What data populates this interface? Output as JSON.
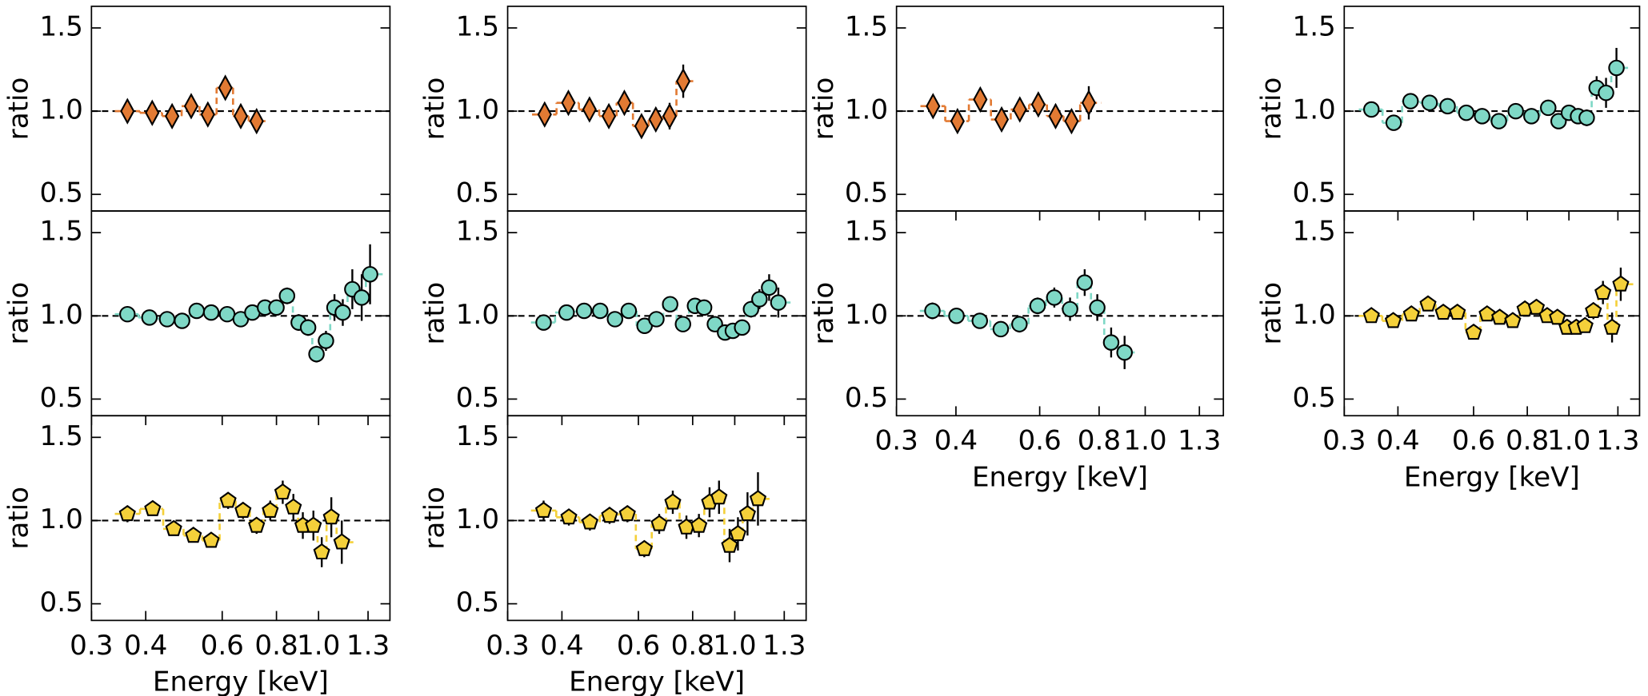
{
  "chart_data": [
    {
      "type": "scatter",
      "marker": "diamond",
      "color": "#e27a33",
      "ylabel": "ratio",
      "xscale": "log",
      "xlim": [
        0.3,
        1.46
      ],
      "ylim": [
        0.4,
        1.63
      ],
      "yticks": [
        0.5,
        {
          "value": 1,
          "label": "1.0"
        },
        1.5
      ],
      "hline": 1,
      "x": [
        0.363,
        0.414,
        0.46,
        0.509,
        0.556,
        0.61,
        0.662,
        0.72
      ],
      "values": [
        1.0,
        0.99,
        0.97,
        1.03,
        0.98,
        1.14,
        0.97,
        0.94
      ],
      "errors": [
        0.07,
        0.06,
        0.05,
        0.05,
        0.06,
        0.07,
        0.07,
        0.07
      ]
    },
    {
      "type": "scatter",
      "marker": "diamond",
      "color": "#e27a33",
      "ylabel": "ratio",
      "xscale": "log",
      "xlim": [
        0.3,
        1.46
      ],
      "ylim": [
        0.4,
        1.63
      ],
      "yticks": [
        0.5,
        {
          "value": 1,
          "label": "1.0"
        },
        1.5
      ],
      "hline": 1,
      "x": [
        0.365,
        0.414,
        0.463,
        0.513,
        0.557,
        0.61,
        0.658,
        0.708,
        0.761
      ],
      "values": [
        0.98,
        1.05,
        1.01,
        0.97,
        1.05,
        0.91,
        0.95,
        0.97,
        1.18
      ],
      "errors": [
        0.05,
        0.05,
        0.04,
        0.04,
        0.05,
        0.06,
        0.07,
        0.08,
        0.1
      ]
    },
    {
      "type": "scatter",
      "marker": "diamond",
      "color": "#e27a33",
      "ylabel": "ratio",
      "xscale": "log",
      "xlim": [
        0.3,
        1.46
      ],
      "ylim": [
        0.4,
        1.63
      ],
      "yticks": [
        0.5,
        {
          "value": 1,
          "label": "1.0"
        },
        1.5
      ],
      "hline": 1,
      "x": [
        0.358,
        0.403,
        0.45,
        0.499,
        0.545,
        0.596,
        0.648,
        0.7,
        0.761
      ],
      "values": [
        1.03,
        0.94,
        1.07,
        0.95,
        1.01,
        1.04,
        0.97,
        0.94,
        1.05
      ],
      "errors": [
        0.05,
        0.04,
        0.04,
        0.04,
        0.05,
        0.06,
        0.07,
        0.07,
        0.1
      ]
    },
    {
      "type": "scatter",
      "marker": "circle",
      "color": "#7fd8c6",
      "ylabel": "ratio",
      "xscale": "log",
      "xlim": [
        0.3,
        1.46
      ],
      "ylim": [
        0.4,
        1.63
      ],
      "yticks": [
        0.5,
        {
          "value": 1,
          "label": "1.0"
        },
        1.5
      ],
      "hline": 1,
      "x": [
        0.347,
        0.391,
        0.428,
        0.474,
        0.522,
        0.577,
        0.628,
        0.687,
        0.752,
        0.818,
        0.895,
        0.946,
        1.0,
        1.05,
        1.1,
        1.16,
        1.22,
        1.29
      ],
      "values": [
        1.01,
        0.93,
        1.06,
        1.05,
        1.03,
        0.99,
        0.97,
        0.94,
        1.0,
        0.97,
        1.02,
        0.94,
        0.99,
        0.97,
        0.96,
        1.14,
        1.11,
        1.26
      ],
      "errors": [
        0.02,
        0.02,
        0.02,
        0.02,
        0.02,
        0.02,
        0.02,
        0.02,
        0.02,
        0.02,
        0.02,
        0.03,
        0.03,
        0.04,
        0.05,
        0.07,
        0.09,
        0.12
      ]
    },
    {
      "type": "scatter",
      "marker": "circle",
      "color": "#7fd8c6",
      "ylabel": "ratio",
      "xscale": "log",
      "xlim": [
        0.3,
        1.46
      ],
      "ylim": [
        0.4,
        1.63
      ],
      "yticks": [
        0.5,
        {
          "value": 1,
          "label": "1.0"
        },
        1.5
      ],
      "hline": 1,
      "x": [
        0.363,
        0.408,
        0.448,
        0.485,
        0.524,
        0.566,
        0.616,
        0.662,
        0.704,
        0.753,
        0.8,
        0.846,
        0.9,
        0.946,
        0.989,
        1.04,
        1.088,
        1.137,
        1.196,
        1.257,
        1.314
      ],
      "values": [
        1.01,
        0.99,
        0.98,
        0.97,
        1.03,
        1.02,
        1.01,
        0.98,
        1.02,
        1.05,
        1.05,
        1.12,
        0.96,
        0.93,
        0.77,
        0.85,
        1.05,
        1.02,
        1.16,
        1.11,
        1.25
      ],
      "errors": [
        0.03,
        0.02,
        0.02,
        0.02,
        0.02,
        0.02,
        0.02,
        0.02,
        0.02,
        0.03,
        0.03,
        0.05,
        0.05,
        0.05,
        0.05,
        0.06,
        0.08,
        0.08,
        0.12,
        0.14,
        0.18
      ]
    },
    {
      "type": "scatter",
      "marker": "circle",
      "color": "#7fd8c6",
      "ylabel": "ratio",
      "xscale": "log",
      "xlim": [
        0.3,
        1.46
      ],
      "ylim": [
        0.4,
        1.63
      ],
      "yticks": [
        0.5,
        {
          "value": 1,
          "label": "1.0"
        },
        1.5
      ],
      "hline": 1,
      "x": [
        0.363,
        0.41,
        0.45,
        0.49,
        0.53,
        0.57,
        0.62,
        0.66,
        0.71,
        0.76,
        0.81,
        0.85,
        0.9,
        0.95,
        0.99,
        1.04,
        1.09,
        1.14,
        1.2,
        1.26
      ],
      "values": [
        0.96,
        1.02,
        1.03,
        1.03,
        0.98,
        1.03,
        0.94,
        0.98,
        1.07,
        0.95,
        1.06,
        1.05,
        0.95,
        0.9,
        0.91,
        0.93,
        1.04,
        1.1,
        1.17,
        1.08
      ],
      "errors": [
        0.03,
        0.02,
        0.02,
        0.02,
        0.02,
        0.02,
        0.02,
        0.02,
        0.02,
        0.02,
        0.02,
        0.02,
        0.03,
        0.04,
        0.04,
        0.04,
        0.05,
        0.06,
        0.08,
        0.09
      ]
    },
    {
      "type": "scatter",
      "marker": "circle",
      "color": "#7fd8c6",
      "ylabel": "ratio",
      "xlabel": "Energy [keV]",
      "xscale": "log",
      "xlim": [
        0.3,
        1.46
      ],
      "ylim": [
        0.4,
        1.63
      ],
      "yticks": [
        0.5,
        {
          "value": 1,
          "label": "1.0"
        },
        1.5
      ],
      "hline": 1,
      "xticks": [
        0.3,
        0.4,
        0.6,
        0.8,
        {
          "value": 1,
          "label": "1.0"
        },
        1.3
      ],
      "x": [
        0.357,
        0.401,
        0.449,
        0.497,
        0.544,
        0.594,
        0.644,
        0.695,
        0.746,
        0.793,
        0.848,
        0.905
      ],
      "values": [
        1.03,
        1.0,
        0.97,
        0.92,
        0.95,
        1.06,
        1.11,
        1.04,
        1.2,
        1.05,
        0.84,
        0.78
      ],
      "errors": [
        0.05,
        0.04,
        0.04,
        0.04,
        0.05,
        0.05,
        0.06,
        0.07,
        0.08,
        0.08,
        0.09,
        0.1
      ]
    },
    {
      "type": "scatter",
      "marker": "pentagon",
      "color": "#f4d03a",
      "ylabel": "ratio",
      "xlabel": "Energy [keV]",
      "xscale": "log",
      "xlim": [
        0.3,
        1.46
      ],
      "ylim": [
        0.4,
        1.63
      ],
      "yticks": [
        0.5,
        {
          "value": 1,
          "label": "1.0"
        },
        1.5
      ],
      "hline": 1,
      "xticks": [
        0.3,
        0.4,
        0.6,
        0.8,
        {
          "value": 1,
          "label": "1.0"
        },
        1.3
      ],
      "x": [
        0.347,
        0.39,
        0.43,
        0.47,
        0.51,
        0.55,
        0.6,
        0.645,
        0.69,
        0.74,
        0.79,
        0.84,
        0.89,
        0.94,
        0.99,
        1.04,
        1.09,
        1.14,
        1.2,
        1.26,
        1.32
      ],
      "values": [
        1.0,
        0.97,
        1.01,
        1.07,
        1.02,
        1.02,
        0.9,
        1.01,
        0.99,
        0.97,
        1.04,
        1.05,
        1.0,
        0.99,
        0.93,
        0.93,
        0.94,
        1.03,
        1.14,
        0.93,
        1.19
      ],
      "errors": [
        0.02,
        0.02,
        0.02,
        0.02,
        0.02,
        0.02,
        0.02,
        0.02,
        0.02,
        0.02,
        0.02,
        0.02,
        0.02,
        0.02,
        0.03,
        0.03,
        0.04,
        0.05,
        0.07,
        0.09,
        0.1
      ]
    },
    {
      "type": "scatter",
      "marker": "pentagon",
      "color": "#f4d03a",
      "ylabel": "ratio",
      "xlabel": "Energy [keV]",
      "xscale": "log",
      "xlim": [
        0.3,
        1.46
      ],
      "ylim": [
        0.4,
        1.63
      ],
      "yticks": [
        0.5,
        {
          "value": 1,
          "label": "1.0"
        },
        1.5
      ],
      "hline": 1,
      "xticks": [
        0.3,
        0.4,
        0.6,
        0.8,
        {
          "value": 1,
          "label": "1.0"
        },
        1.3
      ],
      "x": [
        0.363,
        0.415,
        0.464,
        0.515,
        0.566,
        0.619,
        0.67,
        0.72,
        0.774,
        0.827,
        0.875,
        0.92,
        0.973,
        1.017,
        1.07,
        1.131
      ],
      "values": [
        1.04,
        1.07,
        0.95,
        0.91,
        0.88,
        1.12,
        1.06,
        0.97,
        1.06,
        1.17,
        1.08,
        0.97,
        0.97,
        0.81,
        1.02,
        0.87
      ],
      "errors": [
        0.05,
        0.04,
        0.04,
        0.04,
        0.04,
        0.05,
        0.05,
        0.05,
        0.06,
        0.07,
        0.08,
        0.08,
        0.09,
        0.09,
        0.12,
        0.13
      ]
    },
    {
      "type": "scatter",
      "marker": "pentagon",
      "color": "#f4d03a",
      "ylabel": "ratio",
      "xlabel": "Energy [keV]",
      "xscale": "log",
      "xlim": [
        0.3,
        1.46
      ],
      "ylim": [
        0.4,
        1.63
      ],
      "yticks": [
        0.5,
        {
          "value": 1,
          "label": "1.0"
        },
        1.5
      ],
      "hline": 1,
      "xticks": [
        0.3,
        0.4,
        0.6,
        0.8,
        {
          "value": 1,
          "label": "1.0"
        },
        1.3
      ],
      "x": [
        0.363,
        0.415,
        0.464,
        0.515,
        0.566,
        0.619,
        0.67,
        0.72,
        0.774,
        0.827,
        0.875,
        0.92,
        0.973,
        1.017,
        1.07,
        1.131
      ],
      "values": [
        1.06,
        1.02,
        0.99,
        1.03,
        1.04,
        0.83,
        0.98,
        1.11,
        0.96,
        0.97,
        1.11,
        1.14,
        0.85,
        0.92,
        1.04,
        1.13
      ],
      "errors": [
        0.06,
        0.05,
        0.05,
        0.05,
        0.05,
        0.05,
        0.06,
        0.07,
        0.07,
        0.07,
        0.09,
        0.1,
        0.1,
        0.1,
        0.13,
        0.16
      ]
    }
  ]
}
